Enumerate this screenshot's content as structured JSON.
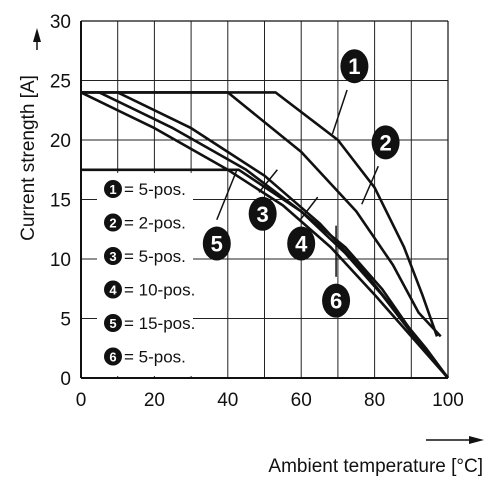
{
  "chart_data": {
    "type": "line",
    "xlabel": "Ambient temperature [°C]",
    "ylabel": "Current strength [A]",
    "xlim": [
      0,
      100
    ],
    "ylim": [
      0,
      30
    ],
    "x_ticks": [
      0,
      20,
      40,
      60,
      80,
      100
    ],
    "y_ticks": [
      0,
      5,
      10,
      15,
      20,
      25,
      30
    ],
    "x_tick_labels": [
      "0",
      "20",
      "40",
      "60",
      "80",
      "100"
    ],
    "y_tick_labels": [
      "0",
      "5",
      "10",
      "15",
      "20",
      "25",
      "30"
    ],
    "grid": true,
    "legend_position": "left-middle",
    "series": [
      {
        "id": "1",
        "legend": "= 5-pos.",
        "points": [
          [
            0,
            24
          ],
          [
            53,
            24
          ],
          [
            70,
            20
          ],
          [
            80,
            16
          ],
          [
            88,
            11
          ],
          [
            93,
            7
          ],
          [
            97,
            3.5
          ]
        ]
      },
      {
        "id": "2",
        "legend": "= 2-pos.",
        "points": [
          [
            0,
            24
          ],
          [
            40,
            24
          ],
          [
            60,
            19
          ],
          [
            75,
            14
          ],
          [
            85,
            9.5
          ],
          [
            92,
            5.5
          ],
          [
            98,
            3.5
          ]
        ]
      },
      {
        "id": "3",
        "legend": "= 5-pos.",
        "points": [
          [
            10,
            24
          ],
          [
            30,
            21
          ],
          [
            50,
            17
          ],
          [
            65,
            13
          ],
          [
            77,
            9
          ],
          [
            86,
            5.5
          ],
          [
            94,
            2.5
          ],
          [
            100,
            0
          ]
        ]
      },
      {
        "id": "4",
        "legend": "= 10-pos.",
        "points": [
          [
            5,
            24
          ],
          [
            25,
            21
          ],
          [
            45,
            17.5
          ],
          [
            60,
            14
          ],
          [
            72,
            10.5
          ],
          [
            82,
            7
          ],
          [
            92,
            3
          ],
          [
            100,
            0
          ]
        ]
      },
      {
        "id": "5",
        "legend": "= 15-pos.",
        "points": [
          [
            0,
            17.5
          ],
          [
            43,
            17.5
          ],
          [
            60,
            14
          ],
          [
            72,
            11
          ],
          [
            82,
            7.5
          ],
          [
            91,
            3.5
          ],
          [
            100,
            0
          ]
        ]
      },
      {
        "id": "6",
        "legend": "= 5-pos.",
        "points": [
          [
            0,
            24
          ],
          [
            20,
            21
          ],
          [
            40,
            17.5
          ],
          [
            55,
            14.5
          ],
          [
            68,
            11
          ],
          [
            80,
            7
          ],
          [
            90,
            3.5
          ],
          [
            100,
            0
          ]
        ]
      }
    ],
    "badges": [
      {
        "label": "1",
        "x": 74.5,
        "y": 26.2
      },
      {
        "label": "2",
        "x": 83,
        "y": 19.8
      },
      {
        "label": "3",
        "x": 49.5,
        "y": 13.8
      },
      {
        "label": "4",
        "x": 60,
        "y": 11.3
      },
      {
        "label": "5",
        "x": 37,
        "y": 11.3
      },
      {
        "label": "6",
        "x": 69.5,
        "y": 6.5
      }
    ],
    "leaders": [
      {
        "label": "1",
        "from": [
          72.5,
          24.2
        ],
        "to": [
          68.5,
          20.5
        ]
      },
      {
        "label": "2",
        "from": [
          81,
          17.8
        ],
        "to": [
          76.5,
          14.6
        ]
      },
      {
        "label": "3",
        "from": [
          48.5,
          15.6
        ],
        "to": [
          53.5,
          17.5
        ]
      },
      {
        "label": "4",
        "from": [
          59.5,
          13.2
        ],
        "to": [
          64.5,
          15.2
        ]
      },
      {
        "label": "5",
        "from": [
          37,
          13.3
        ],
        "to": [
          42.5,
          17.5
        ]
      },
      {
        "label": "6",
        "from": [
          69.5,
          8.5
        ],
        "to": [
          69.5,
          12.8
        ]
      }
    ]
  }
}
